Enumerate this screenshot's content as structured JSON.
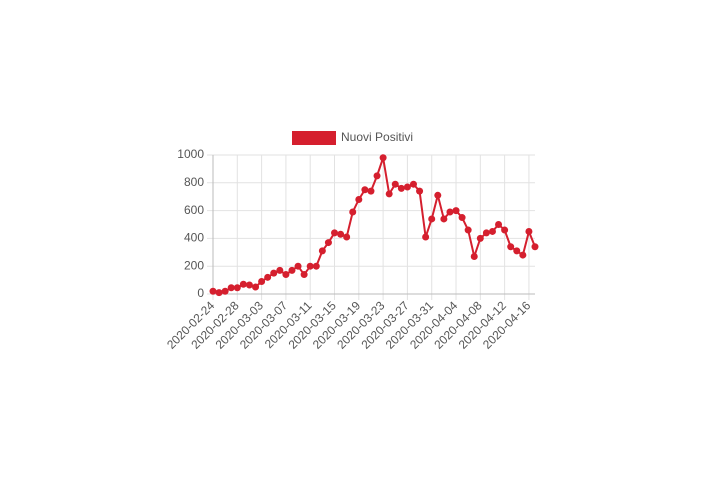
{
  "chart_data": {
    "type": "line",
    "x": [
      "2020-02-24",
      "2020-02-25",
      "2020-02-26",
      "2020-02-27",
      "2020-02-28",
      "2020-02-29",
      "2020-03-01",
      "2020-03-02",
      "2020-03-03",
      "2020-03-04",
      "2020-03-05",
      "2020-03-06",
      "2020-03-07",
      "2020-03-08",
      "2020-03-09",
      "2020-03-10",
      "2020-03-11",
      "2020-03-12",
      "2020-03-13",
      "2020-03-14",
      "2020-03-15",
      "2020-03-16",
      "2020-03-17",
      "2020-03-18",
      "2020-03-19",
      "2020-03-20",
      "2020-03-21",
      "2020-03-22",
      "2020-03-23",
      "2020-03-24",
      "2020-03-25",
      "2020-03-26",
      "2020-03-27",
      "2020-03-28",
      "2020-03-29",
      "2020-03-30",
      "2020-03-31",
      "2020-04-01",
      "2020-04-02",
      "2020-04-03",
      "2020-04-04",
      "2020-04-05",
      "2020-04-06",
      "2020-04-07",
      "2020-04-08",
      "2020-04-09",
      "2020-04-10",
      "2020-04-11",
      "2020-04-12",
      "2020-04-13",
      "2020-04-14",
      "2020-04-15",
      "2020-04-16",
      "2020-04-17"
    ],
    "series": [
      {
        "name": "Nuovi Positivi",
        "color": "#d51f2e",
        "values": [
          20,
          10,
          20,
          45,
          45,
          70,
          65,
          50,
          90,
          120,
          150,
          170,
          140,
          170,
          200,
          140,
          200,
          200,
          310,
          370,
          440,
          430,
          410,
          590,
          680,
          750,
          740,
          850,
          980,
          720,
          790,
          760,
          770,
          790,
          740,
          410,
          540,
          710,
          540,
          590,
          600,
          550,
          460,
          270,
          400,
          440,
          450,
          500,
          460,
          340,
          310,
          280,
          450,
          340
        ]
      }
    ],
    "ylim": [
      0,
      1000
    ],
    "yticks": [
      0,
      200,
      400,
      600,
      800,
      1000
    ],
    "grid": true,
    "legend": "top"
  }
}
